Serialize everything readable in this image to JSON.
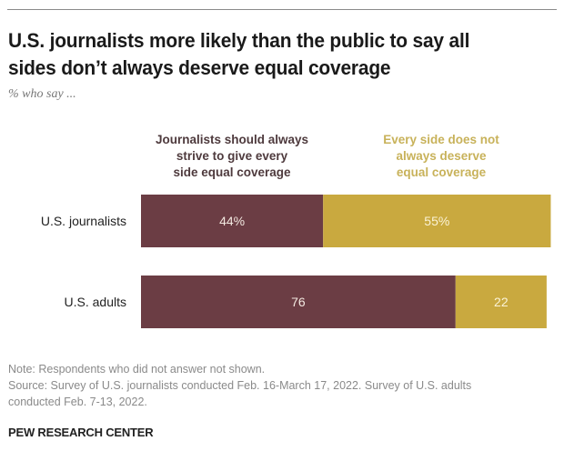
{
  "title": "U.S. journalists more likely than the public to say all sides don’t always deserve equal coverage",
  "subtitle": "% who say ...",
  "colors": {
    "journalists_should": "#6b3d44",
    "every_side_not": "#c9a93f",
    "label_on_dark": "#f2e8e0",
    "label_on_gold": "#fbf3d6"
  },
  "chart_data": {
    "type": "bar",
    "orientation": "horizontal",
    "stacked": true,
    "title": "U.S. journalists more likely than the public to say all sides don’t always deserve equal coverage",
    "subtitle": "% who say ...",
    "categories": [
      "U.S. journalists",
      "U.S. adults"
    ],
    "series": [
      {
        "name": "Journalists should always strive to give every side equal coverage",
        "values": [
          44,
          76
        ],
        "labels": [
          "44%",
          "76"
        ]
      },
      {
        "name": "Every side does not always deserve equal coverage",
        "values": [
          55,
          22
        ],
        "labels": [
          "55%",
          "22"
        ]
      }
    ],
    "xlim": [
      0,
      100
    ],
    "grid": false,
    "legend": "top"
  },
  "legend": {
    "journalists_should": [
      "Journalists should always",
      "strive to give every",
      "side equal coverage"
    ],
    "every_side_not": [
      "Every side does not",
      "always deserve",
      "equal coverage"
    ]
  },
  "notes": {
    "note": "Note: Respondents who did not answer not shown.",
    "source_line1": "Source: Survey of U.S. journalists conducted Feb. 16-March 17, 2022. Survey of U.S. adults",
    "source_line2": "conducted Feb. 7-13, 2022."
  },
  "brand": "PEW RESEARCH CENTER"
}
